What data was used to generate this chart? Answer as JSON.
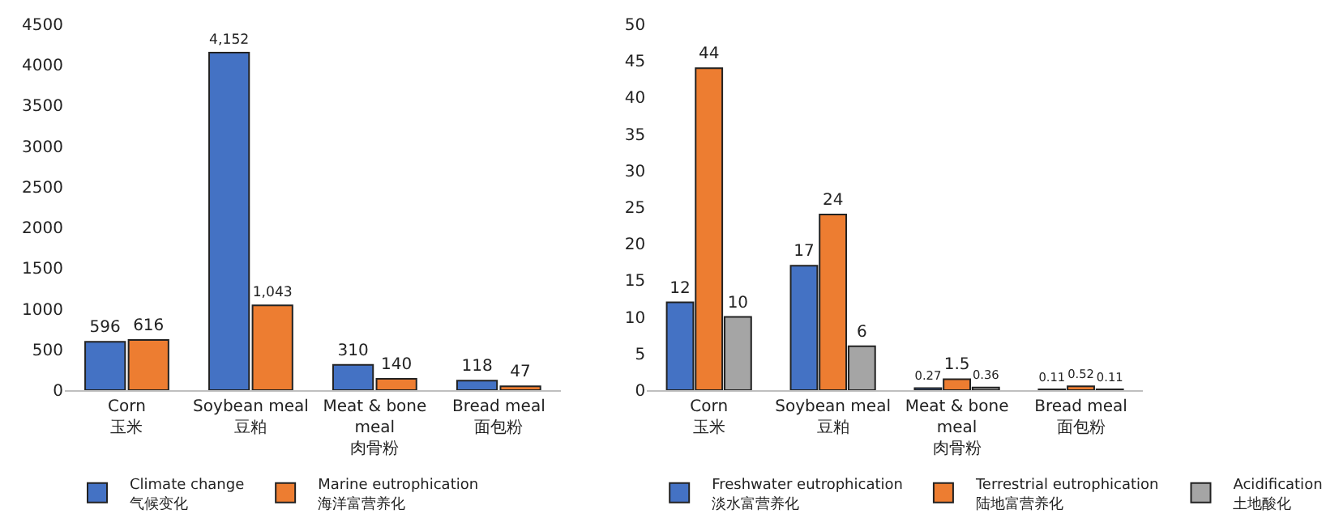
{
  "chart_data": [
    {
      "type": "bar",
      "categories": [
        "Corn\n玉米",
        "Soybean meal\n豆粕",
        "Meat & bone\nmeal\n肉骨粉",
        "Bread meal\n面包粉"
      ],
      "ylim": [
        0,
        4500
      ],
      "yticks": [
        0,
        500,
        1000,
        1500,
        2000,
        2500,
        3000,
        3500,
        4000,
        4500
      ],
      "legend": "bottom",
      "series": [
        {
          "name": "Climate change\n气候变化",
          "color": "#4472c4",
          "values": [
            596,
            4152,
            310,
            118
          ],
          "value_labels": [
            "596",
            "4,152",
            "310",
            "118"
          ]
        },
        {
          "name": "Marine eutrophication\n海洋富营养化",
          "color": "#ed7d31",
          "values": [
            616,
            1043,
            140,
            47
          ],
          "value_labels": [
            "616",
            "1,043",
            "140",
            "47"
          ]
        }
      ]
    },
    {
      "type": "bar",
      "categories": [
        "Corn\n玉米",
        "Soybean meal\n豆粕",
        "Meat & bone\nmeal\n肉骨粉",
        "Bread meal\n面包粉"
      ],
      "ylim": [
        0,
        50
      ],
      "yticks": [
        0,
        5,
        10,
        15,
        20,
        25,
        30,
        35,
        40,
        45,
        50
      ],
      "legend": "bottom",
      "data_labels": true,
      "series": [
        {
          "name": "Freshwater eutrophication\n淡水富营养化",
          "color": "#4472c4",
          "values": [
            12,
            17,
            0.27,
            0.11
          ]
        },
        {
          "name": "Terrestrial eutrophication\n陆地富营养化",
          "color": "#ed7d31",
          "values": [
            44,
            24,
            1.5,
            0.52
          ]
        },
        {
          "name": "Acidification\n土地酸化",
          "color": "#a5a5a5",
          "values": [
            10,
            6,
            0.36,
            0.11
          ]
        }
      ]
    }
  ]
}
